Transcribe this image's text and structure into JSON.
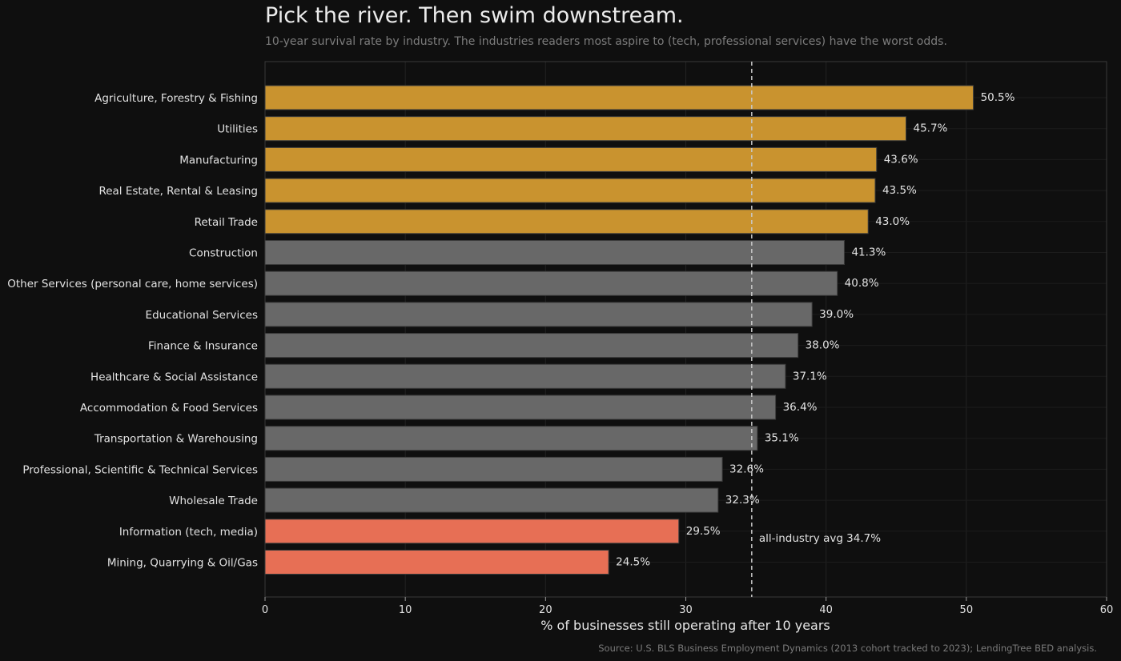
{
  "chart_data": {
    "type": "bar",
    "orientation": "horizontal",
    "title": "Pick the river. Then swim downstream.",
    "subtitle": "10-year survival rate by industry. The industries readers most aspire to (tech, professional services) have the worst odds.",
    "xlabel": "% of businesses still operating after 10 years",
    "source": "Source: U.S. BLS Business Employment Dynamics (2013 cohort tracked to 2023); LendingTree BED analysis.",
    "xlim": [
      0,
      60
    ],
    "xticks": [
      0,
      10,
      20,
      30,
      40,
      50,
      60
    ],
    "grid": true,
    "categories": [
      "Agriculture, Forestry & Fishing",
      "Utilities",
      "Manufacturing",
      "Real Estate, Rental & Leasing",
      "Retail Trade",
      "Construction",
      "Other Services (personal care, home services)",
      "Educational Services",
      "Finance & Insurance",
      "Healthcare & Social Assistance",
      "Accommodation & Food Services",
      "Transportation & Warehousing",
      "Professional, Scientific & Technical Services",
      "Wholesale Trade",
      "Information (tech, media)",
      "Mining, Quarrying & Oil/Gas"
    ],
    "values": [
      50.5,
      45.7,
      43.6,
      43.5,
      43.0,
      41.3,
      40.8,
      39.0,
      38.0,
      37.1,
      36.4,
      35.1,
      32.6,
      32.3,
      29.5,
      24.5
    ],
    "value_labels": [
      "50.5%",
      "45.7%",
      "43.6%",
      "43.5%",
      "43.0%",
      "41.3%",
      "40.8%",
      "39.0%",
      "38.0%",
      "37.1%",
      "36.4%",
      "35.1%",
      "32.6%",
      "32.3%",
      "29.5%",
      "24.5%"
    ],
    "bar_groups": [
      "top",
      "top",
      "top",
      "top",
      "top",
      "mid",
      "mid",
      "mid",
      "mid",
      "mid",
      "mid",
      "mid",
      "mid",
      "mid",
      "bottom",
      "bottom"
    ],
    "colors": {
      "top": "#c9932f",
      "mid": "#686868",
      "bottom": "#e76f55",
      "background": "#0f0f0f",
      "reference_line": "#c8c8c8"
    },
    "reference_line": {
      "value": 34.7,
      "label": "all-industry avg 34.7%"
    }
  }
}
